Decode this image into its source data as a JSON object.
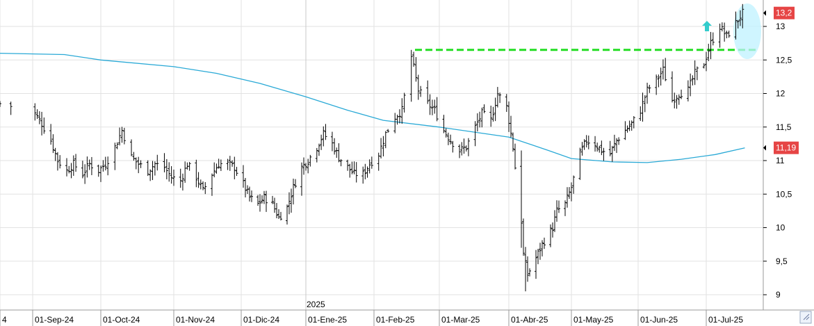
{
  "chart_data": {
    "type": "bar",
    "subtype": "ohlc-price",
    "grid": true,
    "ylim": [
      8.9,
      13.4
    ],
    "y_ticks": [
      9,
      9.5,
      10,
      10.5,
      11,
      11.5,
      12,
      12.5,
      13
    ],
    "y_tick_labels": [
      "9",
      "9,5",
      "10",
      "10,5",
      "11",
      "11,5",
      "12",
      "12,5",
      "13"
    ],
    "x_labels": [
      "4",
      "01-Sep-24",
      "01-Oct-24",
      "01-Nov-24",
      "01-Dic-24",
      "01-Ene-25",
      "01-Feb-25",
      "01-Mar-25",
      "01-Abr-25",
      "01-May-25",
      "01-Jun-25",
      "01-Jul-25"
    ],
    "year_label": "2025",
    "last_price_label": "13,2",
    "last_price": 13.2,
    "ma_label": "11,19",
    "ma_value": 11.19,
    "resistance_level": 12.65,
    "colors": {
      "bars": "#000000",
      "moving_average": "#29a9d6",
      "resistance": "#22dd22",
      "price_badge": "#e64545",
      "highlight": "#bff2ff",
      "arrow": "#33cccc",
      "grid": "#e2e2e2"
    },
    "price_anchors": [
      {
        "x": "2024-08-29",
        "y": 11.85
      },
      {
        "x": "2024-09-02",
        "y": 11.7
      },
      {
        "x": "2024-09-05",
        "y": 11.55
      },
      {
        "x": "2024-09-09",
        "y": 11.3
      },
      {
        "x": "2024-09-12",
        "y": 11.0
      },
      {
        "x": "2024-09-16",
        "y": 10.85
      },
      {
        "x": "2024-09-19",
        "y": 10.95
      },
      {
        "x": "2024-09-23",
        "y": 10.8
      },
      {
        "x": "2024-09-26",
        "y": 10.95
      },
      {
        "x": "2024-09-30",
        "y": 10.85
      },
      {
        "x": "2024-10-03",
        "y": 10.95
      },
      {
        "x": "2024-10-07",
        "y": 11.2
      },
      {
        "x": "2024-10-10",
        "y": 11.45
      },
      {
        "x": "2024-10-14",
        "y": 11.05
      },
      {
        "x": "2024-10-17",
        "y": 10.95
      },
      {
        "x": "2024-10-21",
        "y": 10.85
      },
      {
        "x": "2024-10-24",
        "y": 10.95
      },
      {
        "x": "2024-10-28",
        "y": 10.9
      },
      {
        "x": "2024-10-31",
        "y": 10.75
      },
      {
        "x": "2024-11-04",
        "y": 10.7
      },
      {
        "x": "2024-11-07",
        "y": 10.95
      },
      {
        "x": "2024-11-11",
        "y": 10.75
      },
      {
        "x": "2024-11-14",
        "y": 10.55
      },
      {
        "x": "2024-11-18",
        "y": 10.8
      },
      {
        "x": "2024-11-21",
        "y": 10.95
      },
      {
        "x": "2024-11-25",
        "y": 10.95
      },
      {
        "x": "2024-11-28",
        "y": 10.9
      },
      {
        "x": "2024-12-02",
        "y": 10.65
      },
      {
        "x": "2024-12-05",
        "y": 10.45
      },
      {
        "x": "2024-12-09",
        "y": 10.35
      },
      {
        "x": "2024-12-12",
        "y": 10.45
      },
      {
        "x": "2024-12-16",
        "y": 10.35
      },
      {
        "x": "2024-12-19",
        "y": 10.15
      },
      {
        "x": "2024-12-23",
        "y": 10.3
      },
      {
        "x": "2024-12-26",
        "y": 10.6
      },
      {
        "x": "2024-12-30",
        "y": 10.9
      },
      {
        "x": "2025-01-02",
        "y": 11.0
      },
      {
        "x": "2025-01-06",
        "y": 11.2
      },
      {
        "x": "2025-01-09",
        "y": 11.4
      },
      {
        "x": "2025-01-13",
        "y": 11.25
      },
      {
        "x": "2025-01-16",
        "y": 11.05
      },
      {
        "x": "2025-01-20",
        "y": 10.9
      },
      {
        "x": "2025-01-23",
        "y": 10.8
      },
      {
        "x": "2025-01-27",
        "y": 10.8
      },
      {
        "x": "2025-01-30",
        "y": 10.95
      },
      {
        "x": "2025-02-03",
        "y": 11.1
      },
      {
        "x": "2025-02-06",
        "y": 11.4
      },
      {
        "x": "2025-02-10",
        "y": 11.65
      },
      {
        "x": "2025-02-13",
        "y": 11.75
      },
      {
        "x": "2025-02-17",
        "y": 12.55
      },
      {
        "x": "2025-02-20",
        "y": 12.05
      },
      {
        "x": "2025-02-24",
        "y": 11.85
      },
      {
        "x": "2025-02-27",
        "y": 11.75
      },
      {
        "x": "2025-03-03",
        "y": 11.45
      },
      {
        "x": "2025-03-06",
        "y": 11.3
      },
      {
        "x": "2025-03-10",
        "y": 11.15
      },
      {
        "x": "2025-03-13",
        "y": 11.2
      },
      {
        "x": "2025-03-17",
        "y": 11.5
      },
      {
        "x": "2025-03-20",
        "y": 11.7
      },
      {
        "x": "2025-03-24",
        "y": 11.6
      },
      {
        "x": "2025-03-27",
        "y": 12.0
      },
      {
        "x": "2025-03-31",
        "y": 11.8
      },
      {
        "x": "2025-04-03",
        "y": 11.2
      },
      {
        "x": "2025-04-04",
        "y": 10.9
      },
      {
        "x": "2025-04-07",
        "y": 10.1
      },
      {
        "x": "2025-04-08",
        "y": 9.6
      },
      {
        "x": "2025-04-10",
        "y": 9.3
      },
      {
        "x": "2025-04-14",
        "y": 9.55
      },
      {
        "x": "2025-04-17",
        "y": 9.75
      },
      {
        "x": "2025-04-22",
        "y": 10.0
      },
      {
        "x": "2025-04-24",
        "y": 10.25
      },
      {
        "x": "2025-04-28",
        "y": 10.35
      },
      {
        "x": "2025-05-01",
        "y": 10.6
      },
      {
        "x": "2025-05-05",
        "y": 11.1
      },
      {
        "x": "2025-05-08",
        "y": 11.3
      },
      {
        "x": "2025-05-12",
        "y": 11.25
      },
      {
        "x": "2025-05-15",
        "y": 11.15
      },
      {
        "x": "2025-05-19",
        "y": 11.1
      },
      {
        "x": "2025-05-22",
        "y": 11.3
      },
      {
        "x": "2025-05-26",
        "y": 11.45
      },
      {
        "x": "2025-05-29",
        "y": 11.55
      },
      {
        "x": "2025-06-02",
        "y": 11.75
      },
      {
        "x": "2025-06-05",
        "y": 12.05
      },
      {
        "x": "2025-06-09",
        "y": 12.2
      },
      {
        "x": "2025-06-12",
        "y": 12.35
      },
      {
        "x": "2025-06-16",
        "y": 11.9
      },
      {
        "x": "2025-06-19",
        "y": 12.0
      },
      {
        "x": "2025-06-23",
        "y": 12.05
      },
      {
        "x": "2025-06-26",
        "y": 12.3
      },
      {
        "x": "2025-06-30",
        "y": 12.45
      },
      {
        "x": "2025-07-03",
        "y": 12.75
      },
      {
        "x": "2025-07-07",
        "y": 13.0
      },
      {
        "x": "2025-07-10",
        "y": 12.85
      },
      {
        "x": "2025-07-14",
        "y": 13.05
      },
      {
        "x": "2025-07-17",
        "y": 13.2
      }
    ],
    "moving_average_series": [
      {
        "x": "2024-08-29",
        "y": 12.6
      },
      {
        "x": "2024-09-15",
        "y": 12.58
      },
      {
        "x": "2024-10-01",
        "y": 12.5
      },
      {
        "x": "2024-11-01",
        "y": 12.4
      },
      {
        "x": "2024-11-20",
        "y": 12.3
      },
      {
        "x": "2024-12-10",
        "y": 12.15
      },
      {
        "x": "2025-01-01",
        "y": 11.95
      },
      {
        "x": "2025-01-20",
        "y": 11.75
      },
      {
        "x": "2025-02-05",
        "y": 11.6
      },
      {
        "x": "2025-03-01",
        "y": 11.5
      },
      {
        "x": "2025-04-01",
        "y": 11.35
      },
      {
        "x": "2025-04-20",
        "y": 11.15
      },
      {
        "x": "2025-05-01",
        "y": 11.03
      },
      {
        "x": "2025-05-20",
        "y": 10.98
      },
      {
        "x": "2025-06-05",
        "y": 10.97
      },
      {
        "x": "2025-06-20",
        "y": 11.02
      },
      {
        "x": "2025-07-05",
        "y": 11.09
      },
      {
        "x": "2025-07-18",
        "y": 11.19
      }
    ]
  }
}
